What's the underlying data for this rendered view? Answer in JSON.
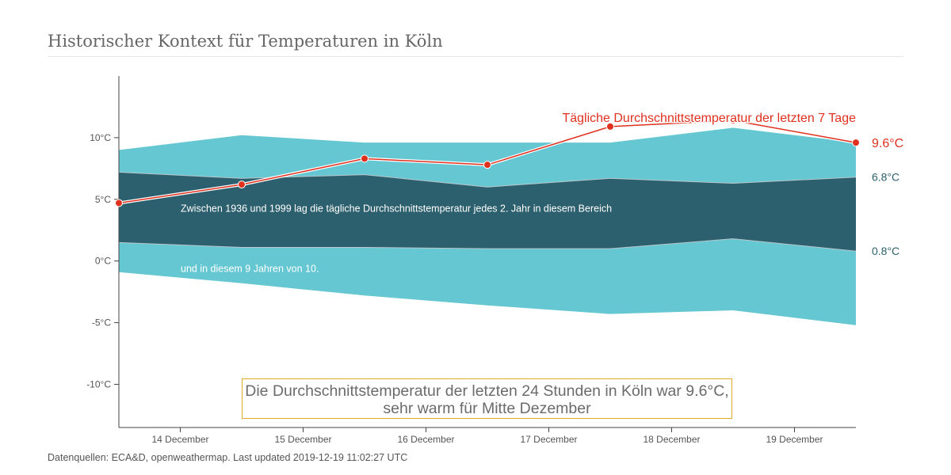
{
  "page": {
    "title": "Historischer Kontext für Temperaturen in Köln",
    "source": "Datenquellen: ECA&D, openweathermap. Last updated 2019-12-19 11:02:27 UTC"
  },
  "headline": {
    "line1": "Die Durchschnittstemperatur der letzten 24 Stunden in Köln war 9.6°C,",
    "line2": "sehr warm für Mitte Dezember"
  },
  "colors": {
    "outer_band": "#65c7d2",
    "inner_band": "#2d606e",
    "recent_line": "#e0301e",
    "axis_text": "#555555",
    "headline_border": "#e0a92a"
  },
  "chart_data": {
    "type": "area",
    "title": "Historischer Kontext für Temperaturen in Köln",
    "x": [
      "2019-12-13 12:00",
      "2019-12-14 12:00",
      "2019-12-15 12:00",
      "2019-12-16 12:00",
      "2019-12-17 12:00",
      "2019-12-18 12:00",
      "2019-12-19 12:00"
    ],
    "x_ticks": [
      "14 December",
      "15 December",
      "16 December",
      "17 December",
      "18 December",
      "19 December"
    ],
    "y_ticks": [
      "10°C",
      "5°C",
      "0°C",
      "-5°C",
      "-10°C"
    ],
    "y_tick_values": [
      10,
      5,
      0,
      -5,
      -10
    ],
    "ylim": [
      -13.5,
      15
    ],
    "bands": [
      {
        "name": "90%",
        "low": [
          -0.9,
          -1.8,
          -2.8,
          -3.6,
          -4.3,
          -4.0,
          -5.2
        ],
        "high": [
          9.0,
          10.2,
          9.6,
          9.6,
          9.6,
          10.8,
          9.6
        ]
      },
      {
        "name": "50%",
        "low": [
          1.5,
          1.1,
          1.1,
          1.0,
          1.0,
          1.8,
          0.8
        ],
        "high": [
          7.2,
          6.7,
          7.0,
          6.0,
          6.7,
          6.3,
          6.8
        ]
      }
    ],
    "series": [
      {
        "name": "Tägliche Durchschnittstemperatur der letzten 7 Tage",
        "values": [
          4.7,
          6.2,
          8.3,
          7.8,
          10.9,
          11.4,
          9.6
        ]
      }
    ],
    "end_labels": [
      "9.6°C",
      "6.8°C",
      "0.8°C"
    ],
    "annotations": [
      "Zwischen 1936 und 1999 lag die tägliche Durchschnittstemperatur jedes 2. Jahr in diesem Bereich",
      "und in diesem 9 Jahren von 10."
    ]
  }
}
